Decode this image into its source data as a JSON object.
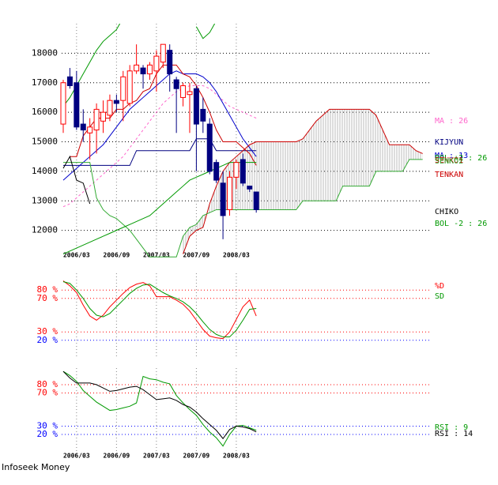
{
  "chart_data": [
    {
      "type": "candlestick",
      "categories": [
        null,
        null,
        "2006/03",
        null,
        null,
        null,
        null,
        null,
        "2006/09",
        null,
        null,
        null,
        null,
        null,
        "2007/03",
        null,
        null,
        null,
        null,
        null,
        "2007/09",
        null,
        null,
        null,
        null,
        null,
        "2008/03",
        null,
        null,
        null,
        null,
        null,
        null,
        null,
        null,
        null,
        null,
        null,
        null,
        null,
        null,
        null,
        null,
        null,
        null,
        null,
        null,
        null,
        null,
        null,
        null,
        null,
        null,
        null,
        null
      ],
      "open": [
        15600,
        17200,
        17000,
        15600,
        15300,
        15400,
        15700,
        15900,
        16400,
        16400,
        16300,
        17400,
        17500,
        17300,
        17400,
        17700,
        18100,
        17100,
        16500,
        16600,
        16800,
        16100,
        15600,
        14300,
        13600,
        12700,
        13800,
        14400,
        13500,
        13300,
        null,
        null,
        null,
        null,
        null,
        null,
        null,
        null,
        null,
        null,
        null,
        null,
        null,
        null,
        null,
        null,
        null,
        null,
        null,
        null,
        null,
        null,
        null,
        null,
        null
      ],
      "high": [
        17100,
        17500,
        17400,
        16100,
        15800,
        16300,
        16400,
        16600,
        16600,
        17400,
        17600,
        18300,
        17600,
        17700,
        18100,
        18300,
        18300,
        17200,
        17000,
        17000,
        16900,
        16500,
        15800,
        14400,
        14000,
        14000,
        14400,
        14600,
        13500,
        13300,
        null,
        null,
        null,
        null,
        null,
        null,
        null,
        null,
        null,
        null,
        null,
        null,
        null,
        null,
        null,
        null,
        null,
        null,
        null,
        null,
        null,
        null,
        null,
        null,
        null
      ],
      "low": [
        15300,
        16800,
        15400,
        15000,
        14400,
        14600,
        15300,
        15700,
        16000,
        15700,
        16200,
        17300,
        16800,
        17100,
        16700,
        17500,
        16700,
        15300,
        16200,
        15300,
        14000,
        15300,
        13900,
        13600,
        11700,
        12500,
        13400,
        13500,
        13300,
        12600,
        null,
        null,
        null,
        null,
        null,
        null,
        null,
        null,
        null,
        null,
        null,
        null,
        null,
        null,
        null,
        null,
        null,
        null,
        null,
        null,
        null,
        null,
        null,
        null,
        null
      ],
      "close": [
        17000,
        16900,
        15500,
        15400,
        15500,
        16100,
        16000,
        16400,
        16300,
        17200,
        17400,
        17600,
        17300,
        17600,
        17900,
        18300,
        17300,
        16800,
        16900,
        16700,
        15600,
        15700,
        14000,
        13700,
        12500,
        13800,
        14300,
        13600,
        13400,
        12700,
        null,
        null,
        null,
        null,
        null,
        null,
        null,
        null,
        null,
        null,
        null,
        null,
        null,
        null,
        null,
        null,
        null,
        null,
        null,
        null,
        null,
        null,
        null,
        null,
        null
      ],
      "up_color": "#ff0000",
      "down_color": "#000080",
      "series": [
        {
          "name": "MA : 26",
          "color": "#ff66cc",
          "dash": true,
          "values": [
            12800,
            12900,
            13100,
            13300,
            13500,
            13700,
            13900,
            14100,
            14300,
            14500,
            14800,
            15100,
            15400,
            15700,
            16000,
            16300,
            16500,
            16700,
            16800,
            16900,
            16900,
            16900,
            16800,
            16600,
            16400,
            16200,
            16100,
            16000,
            15900,
            15800,
            null,
            null,
            null,
            null,
            null,
            null,
            null,
            null,
            null,
            null,
            null,
            null,
            null,
            null,
            null,
            null,
            null,
            null,
            null,
            null,
            null,
            null,
            null,
            null,
            null
          ]
        },
        {
          "name": "KIJYUN",
          "color": "#000080",
          "values": [
            14200,
            14200,
            14200,
            14200,
            14200,
            14200,
            14200,
            14200,
            14200,
            14200,
            14200,
            14700,
            14700,
            14700,
            14700,
            14700,
            14700,
            14700,
            14700,
            14700,
            15100,
            15100,
            15100,
            14700,
            14700,
            14700,
            14700,
            14700,
            14700,
            14700,
            null,
            null,
            null,
            null,
            null,
            null,
            null,
            null,
            null,
            null,
            null,
            null,
            null,
            null,
            null,
            null,
            null,
            null,
            null,
            null,
            null,
            null,
            null,
            null,
            null
          ]
        },
        {
          "name": "MA : 13",
          "color": "#0000cc",
          "values": [
            13700,
            13900,
            14100,
            14300,
            14500,
            14700,
            14900,
            15200,
            15500,
            15800,
            16100,
            16300,
            16500,
            16700,
            16900,
            17100,
            17300,
            17400,
            17300,
            17300,
            17300,
            17200,
            17000,
            16700,
            16300,
            15900,
            15500,
            15100,
            14800,
            14500,
            null,
            null,
            null,
            null,
            null,
            null,
            null,
            null,
            null,
            null,
            null,
            null,
            null,
            null,
            null,
            null,
            null,
            null,
            null,
            null,
            null,
            null,
            null,
            null,
            null
          ]
        },
        {
          "name": "BOL +2 : 26",
          "color": "#009900",
          "values": [
            16200,
            16500,
            16900,
            17300,
            17700,
            18100,
            18400,
            18600,
            18800,
            19200,
            null,
            null,
            null,
            null,
            null,
            null,
            null,
            null,
            null,
            null,
            18900,
            18500,
            18700,
            19100,
            null,
            null,
            null,
            null,
            null,
            null,
            null,
            null,
            null,
            null,
            null,
            null,
            null,
            null,
            null,
            null,
            null,
            null,
            null,
            null,
            null,
            null,
            null,
            null,
            null,
            null,
            null,
            null,
            null,
            null,
            null
          ]
        },
        {
          "name": "SENKO1",
          "color": "#cc0000",
          "cloud": true,
          "values": [
            null,
            null,
            null,
            null,
            null,
            null,
            null,
            null,
            null,
            null,
            null,
            null,
            null,
            null,
            null,
            null,
            null,
            null,
            11200,
            11800,
            12000,
            12100,
            12900,
            13500,
            14000,
            14300,
            14500,
            14700,
            14900,
            15000,
            15000,
            15000,
            15000,
            15000,
            15000,
            15000,
            15100,
            15400,
            15700,
            15900,
            16100,
            16100,
            16100,
            16100,
            16100,
            16100,
            16100,
            15900,
            15400,
            14900,
            14900,
            14900,
            14900,
            14700,
            14600
          ]
        },
        {
          "name": "SENKO2",
          "color": "#33aa33",
          "cloud": true,
          "values": [
            14300,
            14300,
            14300,
            14300,
            14300,
            13100,
            12700,
            12500,
            12400,
            12200,
            12000,
            11700,
            11400,
            11100,
            11100,
            11100,
            11100,
            11100,
            11800,
            12100,
            12200,
            12500,
            12600,
            12700,
            12700,
            12700,
            12700,
            12700,
            12700,
            12700,
            12700,
            12700,
            12700,
            12700,
            12700,
            12700,
            13000,
            13000,
            13000,
            13000,
            13000,
            13000,
            13500,
            13500,
            13500,
            13500,
            13500,
            14000,
            14000,
            14000,
            14000,
            14000,
            14400,
            14400,
            14400
          ]
        },
        {
          "name": "TENKAN",
          "color": "#cc0000",
          "values": [
            null,
            14500,
            14500,
            15200,
            15500,
            15800,
            15800,
            15800,
            16100,
            16100,
            16300,
            16400,
            16700,
            16800,
            17300,
            17600,
            17600,
            17600,
            17300,
            17200,
            16900,
            16500,
            16000,
            15400,
            15000,
            15000,
            15000,
            14800,
            14600,
            14200,
            null,
            null,
            null,
            null,
            null,
            null,
            null,
            null,
            null,
            null,
            null,
            null,
            null,
            null,
            null,
            null,
            null,
            null,
            null,
            null,
            null,
            null,
            null,
            null,
            null
          ]
        },
        {
          "name": "CHIKO",
          "color": "#000000",
          "values": [
            14100,
            14500,
            13700,
            13600,
            12900,
            null,
            null,
            null,
            null,
            null,
            null,
            null,
            null,
            null,
            null,
            null,
            null,
            null,
            null,
            null,
            null,
            null,
            null,
            null,
            null,
            null,
            null,
            null,
            null,
            null,
            null,
            null,
            null,
            null,
            null,
            null,
            null,
            null,
            null,
            null,
            null,
            null,
            null,
            null,
            null,
            null,
            null,
            null,
            null,
            null,
            null,
            null,
            null,
            null,
            null
          ]
        },
        {
          "name": "BOL -2 : 26",
          "color": "#009900",
          "values": [
            11200,
            11300,
            11400,
            11500,
            11600,
            11700,
            11800,
            11900,
            12000,
            12100,
            12200,
            12300,
            12400,
            12500,
            12700,
            12900,
            13100,
            13300,
            13500,
            13700,
            13800,
            13900,
            14000,
            14100,
            14200,
            14300,
            14300,
            14300,
            14300,
            14300,
            null,
            null,
            null,
            null,
            null,
            null,
            null,
            null,
            null,
            null,
            null,
            null,
            null,
            null,
            null,
            null,
            null,
            null,
            null,
            null,
            null,
            null,
            null,
            null,
            null
          ]
        }
      ],
      "ylim": [
        11000,
        19000
      ],
      "yticks": [
        12000,
        13000,
        14000,
        15000,
        16000,
        17000,
        18000
      ],
      "grid": true
    },
    {
      "type": "line",
      "series": [
        {
          "name": "%D",
          "color": "#ff0000",
          "values": [
            91,
            85,
            77,
            62,
            49,
            44,
            50,
            60,
            68,
            76,
            83,
            87,
            89,
            85,
            72,
            72,
            72,
            68,
            63,
            55,
            44,
            33,
            25,
            23,
            22,
            30,
            45,
            60,
            68,
            49
          ]
        },
        {
          "name": "SD",
          "color": "#009900",
          "values": [
            90,
            88,
            80,
            70,
            58,
            50,
            48,
            52,
            60,
            68,
            76,
            82,
            86,
            87,
            82,
            77,
            73,
            70,
            66,
            60,
            52,
            42,
            33,
            27,
            24,
            24,
            32,
            44,
            57,
            58
          ]
        }
      ],
      "ylim": [
        0,
        100
      ],
      "yticks": [
        {
          "value": 80,
          "label": "80 %"
        },
        {
          "value": 70,
          "label": "70 %"
        },
        {
          "value": 30,
          "label": "30 %"
        },
        {
          "value": 20,
          "label": "20 %"
        }
      ],
      "ytick_colors": [
        "#ff0000",
        "#ff0000",
        "#ff0000",
        "#0000ff"
      ],
      "grid": true
    },
    {
      "type": "line",
      "categories": [
        null,
        null,
        "2006/03",
        null,
        null,
        null,
        null,
        null,
        "2006/09",
        null,
        null,
        null,
        null,
        null,
        "2007/03",
        null,
        null,
        null,
        null,
        null,
        "2007/09",
        null,
        null,
        null,
        null,
        null,
        "2008/03",
        null,
        null,
        null
      ],
      "series": [
        {
          "name": "RSI : 9",
          "color": "#009900",
          "values": [
            96,
            91,
            84,
            73,
            66,
            59,
            54,
            49,
            50,
            52,
            54,
            58,
            90,
            87,
            86,
            83,
            81,
            67,
            58,
            50,
            43,
            32,
            23,
            16,
            6,
            20,
            30,
            31,
            28,
            25
          ]
        },
        {
          "name": "RSI : 14",
          "color": "#000000",
          "values": [
            96,
            88,
            82,
            82,
            82,
            80,
            76,
            72,
            73,
            75,
            77,
            78,
            74,
            68,
            62,
            63,
            64,
            61,
            56,
            53,
            47,
            39,
            32,
            25,
            15,
            26,
            30,
            29,
            27,
            23
          ]
        }
      ],
      "ylim": [
        0,
        100
      ],
      "yticks": [
        {
          "value": 80,
          "label": "80 %"
        },
        {
          "value": 70,
          "label": "70 %"
        },
        {
          "value": 30,
          "label": "30 %"
        },
        {
          "value": 20,
          "label": "20 %"
        }
      ],
      "ytick_colors": [
        "#ff0000",
        "#ff0000",
        "#0000ff",
        "#0000ff"
      ],
      "grid": true
    }
  ],
  "footer": "Infoseek Money"
}
